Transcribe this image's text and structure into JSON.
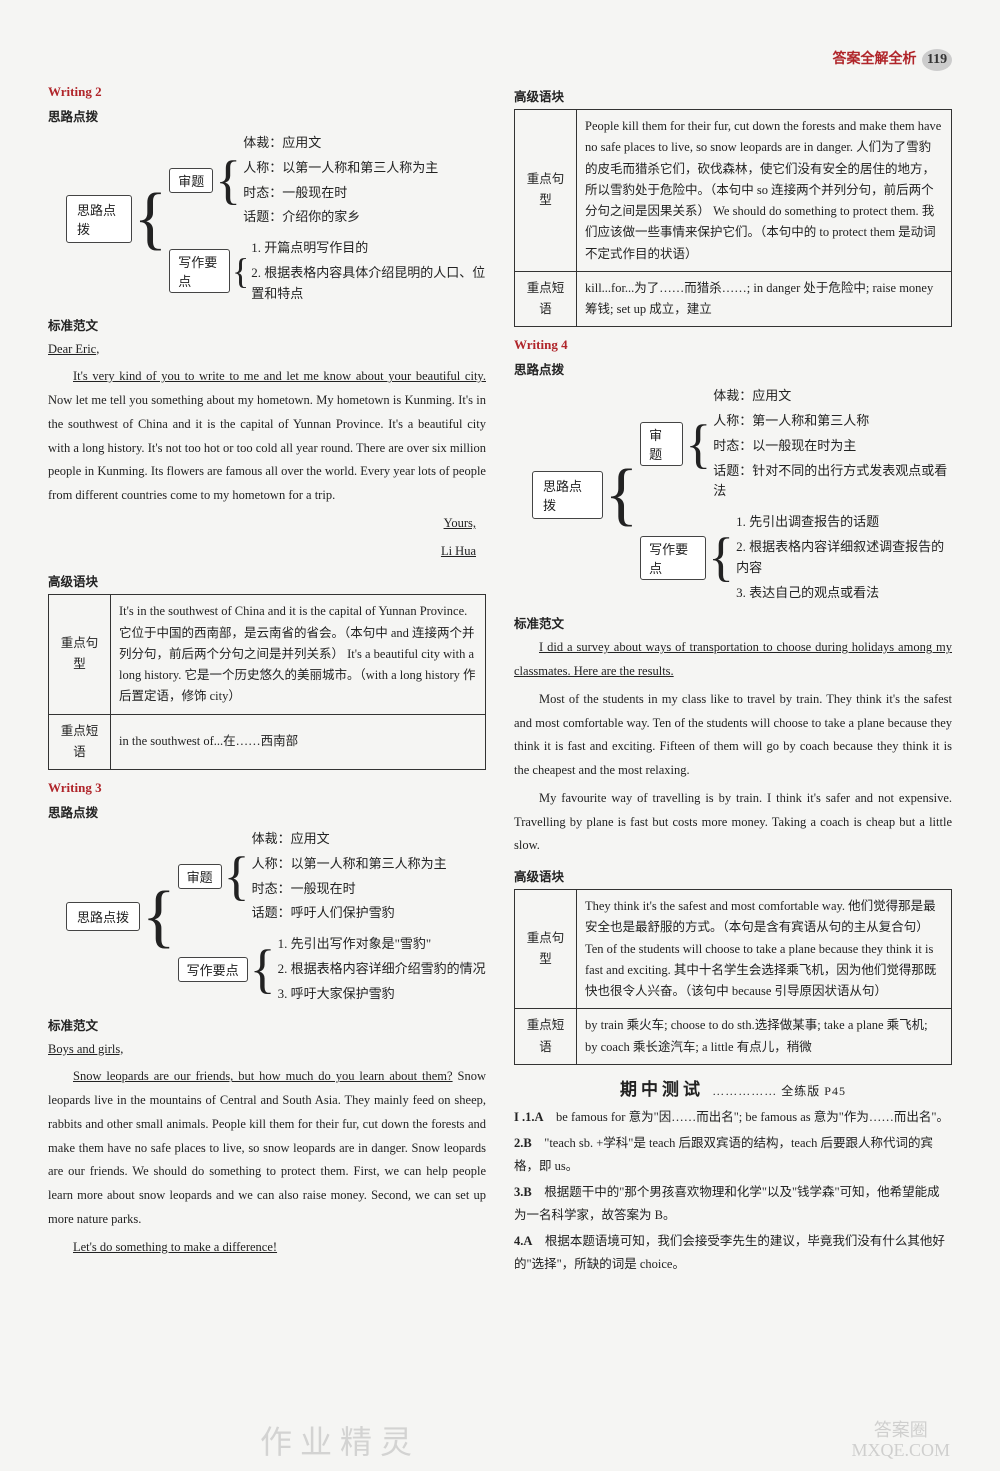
{
  "header": {
    "title": "答案全解全析",
    "page": "119"
  },
  "w2": {
    "title": "Writing 2",
    "sub": "思路点拨",
    "diagram": {
      "root": "思路点拨",
      "b1": "审题",
      "leaves1": [
        "体裁：应用文",
        "人称：以第一人称和第三人称为主",
        "时态：一般现在时",
        "话题：介绍你的家乡"
      ],
      "b2": "写作要点",
      "leaves2": [
        "1. 开篇点明写作目的",
        "2. 根据表格内容具体介绍昆明的人口、位置和特点"
      ]
    },
    "model_label": "标准范文",
    "greeting": "Dear Eric,",
    "body_u": "It's very kind of you to write to me and let me know about your beautiful city.",
    "body": " Now let me tell you something about my hometown. My hometown is Kunming. It's in the southwest of China and it is the capital of Yunnan Province. It's a beautiful city with a long history. It's not too hot or too cold all year round. There are over six million people in Kunming. Its flowers are famous all over the world. Every year lots of people from different countries come to my hometown for a trip.",
    "sign1": "Yours,",
    "sign2": "Li Hua",
    "adv_label": "高级语块",
    "tb": {
      "r1h": "重点句型",
      "r1": "It's in the southwest of China and it is the capital of Yunnan Province. 它位于中国的西南部，是云南省的省会。（本句中 and 连接两个并列分句，前后两个分句之间是并列关系）\nIt's a beautiful city with a long history. 它是一个历史悠久的美丽城市。（with a long history 作后置定语，修饰 city）",
      "r2h": "重点短语",
      "r2": "in the southwest of...在……西南部"
    }
  },
  "w3": {
    "title": "Writing 3",
    "sub": "思路点拨",
    "diagram": {
      "root": "思路点拨",
      "b1": "审题",
      "leaves1": [
        "体裁：应用文",
        "人称：以第一人称和第三人称为主",
        "时态：一般现在时",
        "话题：呼吁人们保护雪豹"
      ],
      "b2": "写作要点",
      "leaves2": [
        "1. 先引出写作对象是\"雪豹\"",
        "2. 根据表格内容详细介绍雪豹的情况",
        "3. 呼吁大家保护雪豹"
      ]
    },
    "model_label": "标准范文",
    "greeting": "Boys and girls,",
    "body_u": "Snow leopards are our friends, but how much do you learn about them?",
    "body": " Snow leopards live in the mountains of Central and South Asia. They mainly feed on sheep, rabbits and other small animals. People kill them for their fur, cut down the forests and make them have no safe places to live, so snow leopards are in danger. Snow leopards are our friends. We should do something to protect them. First, we can help people learn more about snow leopards and we can also raise money. Second, we can set up more nature parks.",
    "closing": "Let's do something to make a difference!"
  },
  "w3_adv": {
    "label": "高级语块",
    "tb": {
      "r1h": "重点句型",
      "r1": "People kill them for their fur, cut down the forests and make them have no safe places to live, so snow leopards are in danger. 人们为了雪豹的皮毛而猎杀它们，砍伐森林，使它们没有安全的居住的地方，所以雪豹处于危险中。（本句中 so 连接两个并列分句，前后两个分句之间是因果关系）\nWe should do something to protect them. 我们应该做一些事情来保护它们。（本句中的 to protect them 是动词不定式作目的状语）",
      "r2h": "重点短语",
      "r2": "kill...for...为了……而猎杀……; in danger 处于危险中; raise money 筹钱; set up 成立，建立"
    }
  },
  "w4": {
    "title": "Writing 4",
    "sub": "思路点拨",
    "diagram": {
      "root": "思路点拨",
      "b1": "审题",
      "leaves1": [
        "体裁：应用文",
        "人称：第一人称和第三人称",
        "时态：以一般现在时为主",
        "话题：针对不同的出行方式发表观点或看法"
      ],
      "b2": "写作要点",
      "leaves2": [
        "1. 先引出调查报告的话题",
        "2. 根据表格内容详细叙述调查报告的内容",
        "3. 表达自己的观点或看法"
      ]
    },
    "model_label": "标准范文",
    "body_u": "I did a survey about ways of transportation to choose during holidays among my classmates. Here are the results.",
    "body1": "Most of the students in my class like to travel by train. They think it's the safest and most comfortable way. Ten of the students will choose to take a plane because they think it is fast and exciting. Fifteen of them will go by coach because they think it is the cheapest and the most relaxing.",
    "body2": "My favourite way of travelling is by train. I think it's safer and not expensive. Travelling by plane is fast but costs more money. Taking a coach is cheap but a little slow.",
    "adv_label": "高级语块",
    "tb": {
      "r1h": "重点句型",
      "r1": "They think it's the safest and most comfortable way. 他们觉得那是最安全也是最舒服的方式。（本句是含有宾语从句的主从复合句）\nTen of the students will choose to take a plane because they think it is fast and exciting. 其中十名学生会选择乘飞机，因为他们觉得那既快也很令人兴奋。（该句中 because 引导原因状语从句）",
      "r2h": "重点短语",
      "r2": "by train 乘火车; choose to do sth.选择做某事; take a plane 乘飞机; by coach 乘长途汽车; a little 有点儿，稍微"
    }
  },
  "midterm": {
    "title": "期中测试",
    "ref": "…………… 全练版 P45",
    "items": [
      {
        "n": "I .1.A",
        "t": "be famous for 意为\"因……而出名\"; be famous as 意为\"作为……而出名\"。"
      },
      {
        "n": "2.B",
        "t": "\"teach sb. +学科\"是 teach 后跟双宾语的结构，teach 后要跟人称代词的宾格，即 us。"
      },
      {
        "n": "3.B",
        "t": "根据题干中的\"那个男孩喜欢物理和化学\"以及\"钱学森\"可知，他希望能成为一名科学家，故答案为 B。"
      },
      {
        "n": "4.A",
        "t": "根据本题语境可知，我们会接受李先生的建议，毕竟我们没有什么其他好的\"选择\"，所缺的词是 choice。"
      }
    ]
  },
  "watermark": "作业精灵",
  "logo": {
    "l1": "答案圈",
    "l2": "MXQE.COM"
  }
}
